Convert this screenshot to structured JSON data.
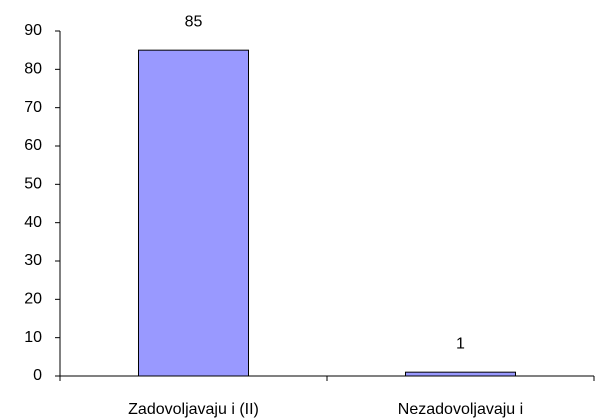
{
  "chart_data": {
    "type": "bar",
    "categories": [
      "Zadovoljavaju i (II)",
      "Nezadovoljavaju i"
    ],
    "values": [
      85,
      1
    ],
    "color": "#9999ff",
    "ylim": [
      0,
      90
    ],
    "yticks": [
      0,
      10,
      20,
      30,
      40,
      50,
      60,
      70,
      80,
      90
    ],
    "grid": false
  }
}
